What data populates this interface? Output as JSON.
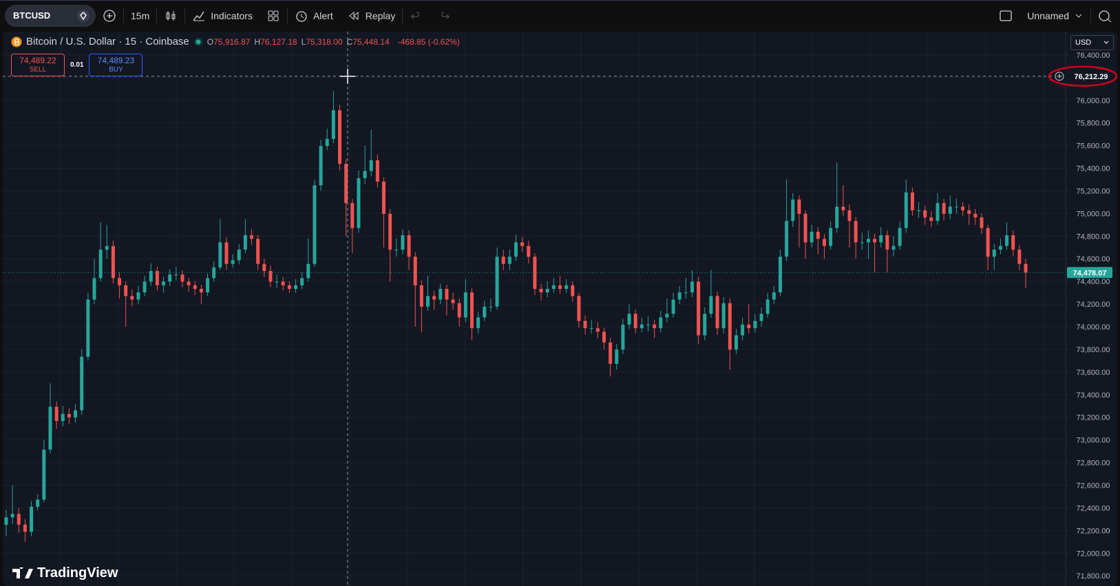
{
  "toolbar": {
    "symbol": "BTCUSD",
    "interval": "15m",
    "indicators": "Indicators",
    "alert": "Alert",
    "replay": "Replay",
    "layout_name": "Unnamed"
  },
  "legend": {
    "title": "Bitcoin / U.S. Dollar · 15 · Coinbase",
    "ohlc": [
      {
        "key": "O",
        "value": "75,916.87"
      },
      {
        "key": "H",
        "value": "76,127.18"
      },
      {
        "key": "L",
        "value": "75,318.00"
      },
      {
        "key": "C",
        "value": "75,448.14"
      }
    ],
    "change": "-468.85 (-0.62%)"
  },
  "trade": {
    "sell_price": "74,489.22",
    "sell": "SELL",
    "quantity": "0.01",
    "buy_price": "74,489.23",
    "buy": "BUY"
  },
  "currency": "USD",
  "logo": "TradingView",
  "chart_data": {
    "type": "candlestick",
    "up_color": "#26a69a",
    "down_color": "#ef5350",
    "grid": true,
    "ylim": [
      71710,
      76606
    ],
    "yticks": [
      {
        "value": 71800,
        "label": "71,800.00"
      },
      {
        "value": 72000,
        "label": "72,000.00"
      },
      {
        "value": 72200,
        "label": "72,200.00"
      },
      {
        "value": 72400,
        "label": "72,400.00"
      },
      {
        "value": 72600,
        "label": "72,600.00"
      },
      {
        "value": 72800,
        "label": "72,800.00"
      },
      {
        "value": 73000,
        "label": "73,000.00"
      },
      {
        "value": 73200,
        "label": "73,200.00"
      },
      {
        "value": 73400,
        "label": "73,400.00"
      },
      {
        "value": 73600,
        "label": "73,600.00"
      },
      {
        "value": 73800,
        "label": "73,800.00"
      },
      {
        "value": 74000,
        "label": "74,000.00"
      },
      {
        "value": 74200,
        "label": "74,200.00"
      },
      {
        "value": 74400,
        "label": "74,400.00"
      },
      {
        "value": 74600,
        "label": "74,600.00"
      },
      {
        "value": 74800,
        "label": "74,800.00"
      },
      {
        "value": 75000,
        "label": "75,000.00"
      },
      {
        "value": 75200,
        "label": "75,200.00"
      },
      {
        "value": 75400,
        "label": "75,400.00"
      },
      {
        "value": 75600,
        "label": "75,600.00"
      },
      {
        "value": 75800,
        "label": "75,800.00"
      },
      {
        "value": 76000,
        "label": "76,000.00"
      },
      {
        "value": 76200,
        "label": "76,200.00"
      },
      {
        "value": 76400,
        "label": "76,400.00"
      }
    ],
    "crosshair": {
      "value": 76212.29,
      "label": "76,212.29"
    },
    "last_price": {
      "value": 74478.07,
      "label": "74,478.07"
    },
    "open": [
      72250,
      72316,
      72347,
      72252,
      72189,
      72410,
      72473,
      72915,
      73293,
      73167,
      73230,
      73199,
      73262,
      73735,
      74240,
      74429,
      74681,
      74713,
      74429,
      74366,
      74271,
      74240,
      74303,
      74398,
      74492,
      74366,
      74398,
      74461,
      74461,
      74398,
      74366,
      74334,
      74303,
      74429,
      74524,
      74745,
      74555,
      74587,
      74681,
      74808,
      74776,
      74555,
      74492,
      74398,
      74398,
      74366,
      74334,
      74366,
      74429,
      74555,
      75249,
      75596,
      75659,
      75912,
      75438,
      75092,
      74871,
      75312,
      75375,
      75470,
      75281,
      74997,
      74681,
      74681,
      74808,
      74618,
      74366,
      74177,
      74271,
      74240,
      74334,
      74240,
      74208,
      74082,
      74303,
      73987,
      74082,
      74177,
      74177,
      74618,
      74555,
      74618,
      74745,
      74713,
      74618,
      74334,
      74303,
      74334,
      74366,
      74334,
      74366,
      74271,
      74051,
      73987,
      73987,
      73956,
      73861,
      73672,
      73798,
      74019,
      74114,
      73987,
      74019,
      74019,
      73987,
      74082,
      74114,
      74240,
      74303,
      74303,
      74398,
      73924,
      74114,
      74271,
      73987,
      74208,
      73798,
      73924,
      74019,
      73987,
      74051,
      74114,
      74240,
      74303,
      74618,
      74934,
      75123,
      74997,
      74745,
      74839,
      74776,
      74713,
      74871,
      75060,
      75028,
      74934,
      74745,
      74745,
      74776,
      74745,
      74808,
      74681,
      74713,
      74871,
      75186,
      75028,
      75028,
      74965,
      74934,
      75092,
      74997,
      75060,
      75060,
      75028,
      74997,
      74965,
      74871,
      74618,
      74681,
      74713,
      74808,
      74681,
      74555
    ],
    "high": [
      72380,
      72600,
      72400,
      72300,
      72460,
      72520,
      73000,
      73500,
      73340,
      73300,
      73280,
      73320,
      73800,
      74300,
      74600,
      74920,
      74900,
      74760,
      74480,
      74400,
      74330,
      74360,
      74450,
      74560,
      74530,
      74440,
      74510,
      74530,
      74500,
      74430,
      74400,
      74370,
      74470,
      74580,
      74950,
      74790,
      74640,
      74730,
      74950,
      74860,
      74810,
      74600,
      74540,
      74460,
      74440,
      74400,
      74420,
      74480,
      74780,
      75300,
      75650,
      75750,
      76080,
      75960,
      75480,
      75130,
      75380,
      75600,
      75740,
      75520,
      75320,
      75040,
      74780,
      74860,
      74850,
      74660,
      74410,
      74450,
      74320,
      74380,
      74370,
      74300,
      74250,
      74420,
      74340,
      74130,
      74230,
      74250,
      74700,
      74680,
      74680,
      74810,
      74790,
      74760,
      74650,
      74380,
      74400,
      74430,
      74450,
      74420,
      74400,
      74300,
      74100,
      74060,
      74040,
      73990,
      73900,
      73850,
      74070,
      74200,
      74150,
      74080,
      74090,
      74060,
      74140,
      74250,
      74300,
      74360,
      74430,
      74500,
      74440,
      74170,
      74500,
      74310,
      74260,
      74250,
      73980,
      74080,
      74200,
      74110,
      74170,
      74300,
      74360,
      74680,
      75300,
      75180,
      75160,
      75030,
      74900,
      74880,
      74820,
      74930,
      75450,
      75250,
      75080,
      74970,
      74830,
      74850,
      74820,
      74880,
      74850,
      74800,
      74930,
      75300,
      75230,
      75100,
      75070,
      75020,
      75180,
      75130,
      75160,
      75130,
      75100,
      75080,
      75040,
      75000,
      74900,
      74730,
      74780,
      74920,
      74850,
      74720,
      74600
    ],
    "low": [
      72150,
      72260,
      72180,
      72100,
      72150,
      72380,
      72450,
      72880,
      73100,
      73120,
      73140,
      73150,
      73220,
      73700,
      74200,
      74400,
      74600,
      74380,
      74250,
      74000,
      74180,
      74200,
      74270,
      74360,
      74320,
      74300,
      74360,
      74410,
      74350,
      74310,
      74280,
      74200,
      74270,
      74400,
      74500,
      74500,
      74520,
      74550,
      74650,
      74720,
      74500,
      74440,
      74350,
      74340,
      74320,
      74300,
      74300,
      74330,
      74400,
      74530,
      75200,
      75560,
      75620,
      75380,
      74800,
      74650,
      74830,
      75260,
      75330,
      75230,
      74700,
      74400,
      74620,
      74640,
      74500,
      74000,
      73950,
      74140,
      74150,
      74200,
      74100,
      74150,
      74000,
      74040,
      73880,
      73940,
      74050,
      74130,
      74150,
      74500,
      74500,
      74580,
      74660,
      74560,
      74280,
      74230,
      74260,
      74300,
      74290,
      74300,
      74220,
      73990,
      73930,
      73940,
      73900,
      73800,
      73560,
      73620,
      73760,
      73980,
      73940,
      73950,
      73960,
      73900,
      73950,
      74040,
      74080,
      74200,
      74250,
      74260,
      73850,
      73880,
      74080,
      73930,
      73940,
      73620,
      73760,
      73880,
      73940,
      73950,
      74000,
      74080,
      74200,
      74270,
      74580,
      74880,
      74700,
      74600,
      74700,
      74640,
      74600,
      74680,
      74830,
      74980,
      74700,
      74600,
      74680,
      74600,
      74480,
      74700,
      74480,
      74620,
      74680,
      74830,
      74980,
      74960,
      74900,
      74880,
      74900,
      74940,
      74950,
      75000,
      74980,
      74900,
      74900,
      74820,
      74500,
      74500,
      74640,
      74680,
      74620,
      74500,
      74340
    ],
    "close": [
      72316,
      72347,
      72252,
      72189,
      72410,
      72473,
      72915,
      73293,
      73167,
      73230,
      73199,
      73262,
      73735,
      74240,
      74429,
      74681,
      74713,
      74429,
      74366,
      74271,
      74240,
      74303,
      74398,
      74492,
      74366,
      74398,
      74461,
      74461,
      74398,
      74366,
      74334,
      74303,
      74429,
      74524,
      74745,
      74555,
      74587,
      74681,
      74808,
      74776,
      74555,
      74492,
      74398,
      74398,
      74366,
      74334,
      74366,
      74429,
      74555,
      75249,
      75596,
      75659,
      75912,
      75438,
      75092,
      74871,
      75312,
      75375,
      75470,
      75281,
      74997,
      74681,
      74681,
      74808,
      74618,
      74366,
      74177,
      74271,
      74240,
      74334,
      74240,
      74208,
      74082,
      74303,
      73987,
      74082,
      74177,
      74177,
      74618,
      74555,
      74618,
      74745,
      74713,
      74618,
      74334,
      74303,
      74334,
      74366,
      74334,
      74366,
      74271,
      74051,
      73987,
      73987,
      73956,
      73861,
      73672,
      73798,
      74019,
      74114,
      73987,
      74019,
      74019,
      73987,
      74082,
      74114,
      74240,
      74303,
      74303,
      74398,
      73924,
      74114,
      74271,
      73987,
      74208,
      73798,
      73924,
      74019,
      73987,
      74051,
      74114,
      74240,
      74303,
      74618,
      74934,
      75123,
      74997,
      74745,
      74839,
      74776,
      74713,
      74871,
      75060,
      75028,
      74934,
      74745,
      74745,
      74776,
      74745,
      74808,
      74681,
      74713,
      74871,
      75186,
      75028,
      75028,
      74965,
      74934,
      75092,
      74997,
      75060,
      75060,
      75028,
      74997,
      74965,
      74871,
      74618,
      74681,
      74713,
      74808,
      74681,
      74555,
      74478
    ]
  }
}
